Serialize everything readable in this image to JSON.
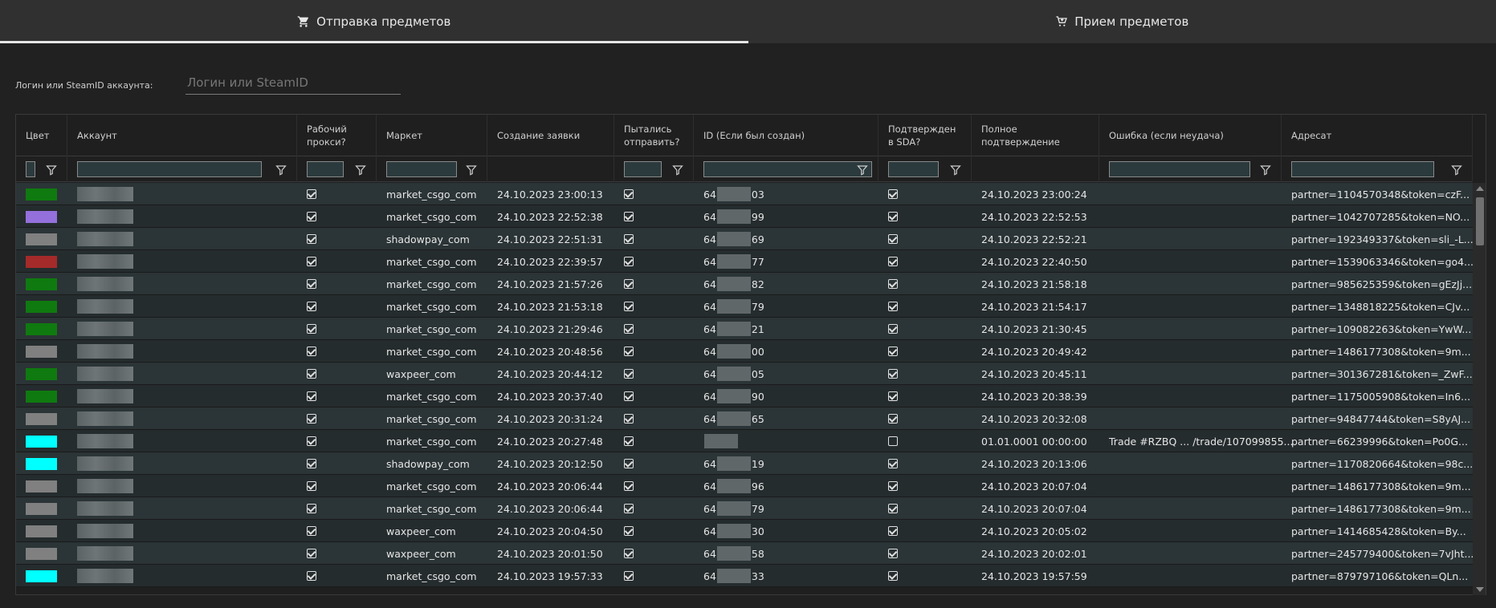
{
  "tabs": [
    {
      "label": "Отправка предметов",
      "icon": "cart-icon",
      "active": true
    },
    {
      "label": "Прием предметов",
      "icon": "cart-add-icon",
      "active": false
    }
  ],
  "search": {
    "label": "Логин или SteamID аккаунта:",
    "placeholder": "Логин или SteamID",
    "value": ""
  },
  "columns": [
    {
      "key": "color",
      "label": "Цвет"
    },
    {
      "key": "account",
      "label": "Аккаунт"
    },
    {
      "key": "proxy",
      "label": "Рабочий прокси?"
    },
    {
      "key": "market",
      "label": "Маркет"
    },
    {
      "key": "created",
      "label": "Создание заявки"
    },
    {
      "key": "tried",
      "label": "Пытались отправить?"
    },
    {
      "key": "id",
      "label": "ID (Если был создан)"
    },
    {
      "key": "sda",
      "label": "Подтвержден в SDA?"
    },
    {
      "key": "full",
      "label": "Полное подтверждение"
    },
    {
      "key": "error",
      "label": "Ошибка (если неудача)"
    },
    {
      "key": "addressee",
      "label": "Адресат"
    }
  ],
  "colors": {
    "green": "#0f7a0f",
    "purple": "#9370db",
    "gray": "#808080",
    "red": "#a52a2a",
    "cyan": "#00ffff"
  },
  "rows": [
    {
      "color": "green",
      "proxy": true,
      "market": "market_csgo_com",
      "created": "24.10.2023 23:00:13",
      "tried": true,
      "id_pre": "64",
      "id_post": "03",
      "sda": true,
      "full": "24.10.2023 23:00:24",
      "error": "",
      "addressee": "partner=1104570348&token=czF..."
    },
    {
      "color": "purple",
      "proxy": true,
      "market": "market_csgo_com",
      "created": "24.10.2023 22:52:38",
      "tried": true,
      "id_pre": "64",
      "id_post": "99",
      "sda": true,
      "full": "24.10.2023 22:52:53",
      "error": "",
      "addressee": "partner=1042707285&token=NO..."
    },
    {
      "color": "gray",
      "proxy": true,
      "market": "shadowpay_com",
      "created": "24.10.2023 22:51:31",
      "tried": true,
      "id_pre": "64",
      "id_post": "69",
      "sda": true,
      "full": "24.10.2023 22:52:21",
      "error": "",
      "addressee": "partner=192349337&token=sli_-L..."
    },
    {
      "color": "red",
      "proxy": true,
      "market": "market_csgo_com",
      "created": "24.10.2023 22:39:57",
      "tried": true,
      "id_pre": "64",
      "id_post": "77",
      "sda": true,
      "full": "24.10.2023 22:40:50",
      "error": "",
      "addressee": "partner=1539063346&token=go4..."
    },
    {
      "color": "green",
      "proxy": true,
      "market": "market_csgo_com",
      "created": "24.10.2023 21:57:26",
      "tried": true,
      "id_pre": "64",
      "id_post": "82",
      "sda": true,
      "full": "24.10.2023 21:58:18",
      "error": "",
      "addressee": "partner=985625359&token=gEzJj..."
    },
    {
      "color": "green",
      "proxy": true,
      "market": "market_csgo_com",
      "created": "24.10.2023 21:53:18",
      "tried": true,
      "id_pre": "64",
      "id_post": "79",
      "sda": true,
      "full": "24.10.2023 21:54:17",
      "error": "",
      "addressee": "partner=1348818225&token=CJv..."
    },
    {
      "color": "green",
      "proxy": true,
      "market": "market_csgo_com",
      "created": "24.10.2023 21:29:46",
      "tried": true,
      "id_pre": "64",
      "id_post": "21",
      "sda": true,
      "full": "24.10.2023 21:30:45",
      "error": "",
      "addressee": "partner=109082263&token=YwW..."
    },
    {
      "color": "gray",
      "proxy": true,
      "market": "market_csgo_com",
      "created": "24.10.2023 20:48:56",
      "tried": true,
      "id_pre": "64",
      "id_post": "00",
      "sda": true,
      "full": "24.10.2023 20:49:42",
      "error": "",
      "addressee": "partner=1486177308&token=9m..."
    },
    {
      "color": "green",
      "proxy": true,
      "market": "waxpeer_com",
      "created": "24.10.2023 20:44:12",
      "tried": true,
      "id_pre": "64",
      "id_post": "05",
      "sda": true,
      "full": "24.10.2023 20:45:11",
      "error": "",
      "addressee": "partner=301367281&token=_ZwF..."
    },
    {
      "color": "green",
      "proxy": true,
      "market": "market_csgo_com",
      "created": "24.10.2023 20:37:40",
      "tried": true,
      "id_pre": "64",
      "id_post": "90",
      "sda": true,
      "full": "24.10.2023 20:38:39",
      "error": "",
      "addressee": "partner=1175005908&token=In6..."
    },
    {
      "color": "gray",
      "proxy": true,
      "market": "market_csgo_com",
      "created": "24.10.2023 20:31:24",
      "tried": true,
      "id_pre": "64",
      "id_post": "65",
      "sda": true,
      "full": "24.10.2023 20:32:08",
      "error": "",
      "addressee": "partner=94847744&token=S8yAJ..."
    },
    {
      "color": "cyan",
      "proxy": true,
      "market": "market_csgo_com",
      "created": "24.10.2023 20:27:48",
      "tried": true,
      "id_pre": "",
      "id_post": "",
      "sda": false,
      "full": "01.01.0001 00:00:00",
      "error": "Trade #RZBQ ... /trade/107099855...",
      "addressee": "partner=66239996&token=Po0G..."
    },
    {
      "color": "cyan",
      "proxy": true,
      "market": "shadowpay_com",
      "created": "24.10.2023 20:12:50",
      "tried": true,
      "id_pre": "64",
      "id_post": "19",
      "sda": true,
      "full": "24.10.2023 20:13:06",
      "error": "",
      "addressee": "partner=1170820664&token=98c..."
    },
    {
      "color": "gray",
      "proxy": true,
      "market": "market_csgo_com",
      "created": "24.10.2023 20:06:44",
      "tried": true,
      "id_pre": "64",
      "id_post": "96",
      "sda": true,
      "full": "24.10.2023 20:07:04",
      "error": "",
      "addressee": "partner=1486177308&token=9m..."
    },
    {
      "color": "gray",
      "proxy": true,
      "market": "market_csgo_com",
      "created": "24.10.2023 20:06:44",
      "tried": true,
      "id_pre": "64",
      "id_post": "79",
      "sda": true,
      "full": "24.10.2023 20:07:04",
      "error": "",
      "addressee": "partner=1486177308&token=9m..."
    },
    {
      "color": "gray",
      "proxy": true,
      "market": "waxpeer_com",
      "created": "24.10.2023 20:04:50",
      "tried": true,
      "id_pre": "64",
      "id_post": "30",
      "sda": true,
      "full": "24.10.2023 20:05:02",
      "error": "",
      "addressee": "partner=1414685428&token=By..."
    },
    {
      "color": "gray",
      "proxy": true,
      "market": "waxpeer_com",
      "created": "24.10.2023 20:01:50",
      "tried": true,
      "id_pre": "64",
      "id_post": "58",
      "sda": true,
      "full": "24.10.2023 20:02:01",
      "error": "",
      "addressee": "partner=245779400&token=7vJht..."
    },
    {
      "color": "cyan",
      "proxy": true,
      "market": "market_csgo_com",
      "created": "24.10.2023 19:57:33",
      "tried": true,
      "id_pre": "64",
      "id_post": "33",
      "sda": true,
      "full": "24.10.2023 19:57:59",
      "error": "",
      "addressee": "partner=879797106&token=QLn..."
    }
  ]
}
